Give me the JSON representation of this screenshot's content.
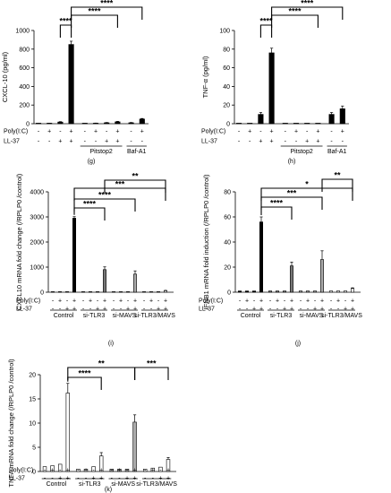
{
  "chart_data": [
    {
      "type": "bar",
      "panel_label": "(g)",
      "ylabel": "CXCL-10 (pg/ml)",
      "ylim": [
        0,
        1000
      ],
      "yticks": [
        "0",
        "200",
        "400",
        "600",
        "800",
        "1000"
      ],
      "row_labels": [
        "Poly(I:C)",
        "LL-37"
      ],
      "signs": {
        "poly": [
          "-",
          "+",
          "-",
          "+",
          "-",
          "+",
          "-",
          "+",
          "-",
          "+"
        ],
        "ll37": [
          "-",
          "-",
          "+",
          "+",
          "-",
          "-",
          "+",
          "+",
          "-",
          "-"
        ]
      },
      "values": [
        2,
        4,
        18,
        850,
        2,
        5,
        10,
        20,
        10,
        50
      ],
      "errors": [
        1,
        1,
        4,
        35,
        1,
        2,
        3,
        5,
        3,
        6
      ],
      "fills": [
        "#000",
        "#000",
        "#000",
        "#000",
        "#000",
        "#000",
        "#000",
        "#000",
        "#000",
        "#000"
      ],
      "groups": [
        {
          "label": "Pitstop2",
          "from": 4,
          "to": 7
        },
        {
          "label": "Baf-A1",
          "from": 8,
          "to": 9
        }
      ],
      "significance": [
        {
          "label": "****",
          "from": 2,
          "to": 3
        },
        {
          "label": "****",
          "from": 3,
          "to": 7
        },
        {
          "label": "****",
          "from": 3,
          "to": 9
        }
      ]
    },
    {
      "type": "bar",
      "panel_label": "(h)",
      "ylabel": "TNF-α (pg/ml)",
      "ylim": [
        0,
        100
      ],
      "yticks": [
        "0",
        "20",
        "40",
        "60",
        "80",
        "100"
      ],
      "row_labels": [
        "Poly(I:C)",
        "LL-37"
      ],
      "signs": {
        "poly": [
          "-",
          "+",
          "-",
          "+",
          "-",
          "+",
          "-",
          "+",
          "-",
          "+"
        ],
        "ll37": [
          "-",
          "-",
          "+",
          "+",
          "-",
          "-",
          "+",
          "+",
          "-",
          "-"
        ]
      },
      "values": [
        0,
        0,
        10,
        76,
        0,
        0,
        0,
        0,
        10,
        16
      ],
      "errors": [
        0,
        0,
        2,
        5,
        0,
        0,
        0,
        0,
        2,
        3
      ],
      "fills": [
        "#000",
        "#000",
        "#000",
        "#000",
        "#000",
        "#000",
        "#000",
        "#000",
        "#000",
        "#000"
      ],
      "groups": [
        {
          "label": "Pitstop2",
          "from": 4,
          "to": 7
        },
        {
          "label": "Baf-A1",
          "from": 8,
          "to": 9
        }
      ],
      "significance": [
        {
          "label": "****",
          "from": 2,
          "to": 3
        },
        {
          "label": "****",
          "from": 3,
          "to": 7
        },
        {
          "label": "****",
          "from": 3,
          "to": 9
        }
      ]
    },
    {
      "type": "bar",
      "panel_label": "(i)",
      "ylabel": "CXCL10 mRNA fold change (/RPLP0 /control)",
      "ylim": [
        0,
        4000
      ],
      "yticks": [
        "0",
        "1000",
        "2000",
        "3000",
        "4000"
      ],
      "row_labels": [
        "Poly(I:C)",
        "LL-37"
      ],
      "signs": {
        "poly": [
          "-",
          "+",
          "-",
          "+",
          "-",
          "+",
          "-",
          "+",
          "-",
          "+",
          "-",
          "+",
          "-",
          "+",
          "-",
          "+"
        ],
        "ll37": [
          "-",
          "-",
          "+",
          "+",
          "-",
          "-",
          "+",
          "+",
          "-",
          "-",
          "+",
          "+",
          "-",
          "-",
          "+",
          "+"
        ]
      },
      "values": [
        0,
        5,
        10,
        2950,
        5,
        5,
        10,
        900,
        5,
        5,
        10,
        720,
        5,
        5,
        10,
        60
      ],
      "errors": [
        0,
        0,
        0,
        60,
        0,
        0,
        0,
        110,
        0,
        0,
        0,
        130,
        0,
        0,
        0,
        15
      ],
      "fills": [
        "#000",
        "#000",
        "#000",
        "#000",
        "#777",
        "#777",
        "#777",
        "#777",
        "#aaa",
        "#aaa",
        "#aaa",
        "#aaa",
        "#fff",
        "#fff",
        "#fff",
        "#fff"
      ],
      "groups": [
        {
          "label": "Control",
          "from": 0,
          "to": 3
        },
        {
          "label": "si-TLR3",
          "from": 4,
          "to": 7
        },
        {
          "label": "si-MAVS",
          "from": 8,
          "to": 11
        },
        {
          "label": "si-TLR3/MAVS",
          "from": 12,
          "to": 15
        }
      ],
      "significance": [
        {
          "label": "****",
          "from": 3,
          "to": 7
        },
        {
          "label": "****",
          "from": 3,
          "to": 11
        },
        {
          "label": "***",
          "from": 3,
          "to": 15
        },
        {
          "label": "**",
          "from": 7,
          "to": 15
        }
      ]
    },
    {
      "type": "bar",
      "panel_label": "(j)",
      "ylabel": "IFNB1 mRNA fold induction (/RPLP0 /control)",
      "ylim": [
        0,
        80
      ],
      "yticks": [
        "0",
        "20",
        "40",
        "60",
        "80"
      ],
      "row_labels": [
        "Poly(I:C)",
        "LL-37"
      ],
      "signs": {
        "poly": [
          "-",
          "+",
          "-",
          "+",
          "-",
          "+",
          "-",
          "+",
          "-",
          "+",
          "-",
          "+",
          "-",
          "+",
          "-",
          "+"
        ],
        "ll37": [
          "-",
          "-",
          "+",
          "+",
          "-",
          "-",
          "+",
          "+",
          "-",
          "-",
          "+",
          "+",
          "-",
          "-",
          "+",
          "+"
        ]
      },
      "values": [
        1,
        1,
        1,
        56,
        1,
        1,
        1,
        21,
        1,
        1,
        1,
        26,
        1,
        1,
        1,
        3
      ],
      "errors": [
        0,
        0,
        0,
        4,
        0,
        0,
        0,
        3,
        0,
        0,
        0,
        7,
        0,
        0,
        0,
        0.5
      ],
      "fills": [
        "#000",
        "#000",
        "#000",
        "#000",
        "#777",
        "#777",
        "#777",
        "#777",
        "#aaa",
        "#aaa",
        "#aaa",
        "#aaa",
        "#fff",
        "#fff",
        "#fff",
        "#fff"
      ],
      "groups": [
        {
          "label": "Control",
          "from": 0,
          "to": 3
        },
        {
          "label": "si-TLR3",
          "from": 4,
          "to": 7
        },
        {
          "label": "si-MAVS",
          "from": 8,
          "to": 11
        },
        {
          "label": "si-TLR3/MAVS",
          "from": 12,
          "to": 15
        }
      ],
      "significance": [
        {
          "label": "****",
          "from": 3,
          "to": 7
        },
        {
          "label": "***",
          "from": 3,
          "to": 11
        },
        {
          "label": "*",
          "from": 3,
          "to": 15
        },
        {
          "label": "**",
          "from": 11,
          "to": 15
        }
      ]
    },
    {
      "type": "bar",
      "panel_label": "(k)",
      "ylabel": "TNFA mRNA fold change (/RPLP0 /control)",
      "ylim": [
        0,
        20
      ],
      "yticks": [
        "0",
        "5",
        "10",
        "15",
        "20"
      ],
      "row_labels": [
        "Poly(I:C)",
        "LL-37"
      ],
      "signs": {
        "poly": [
          "-",
          "+",
          "-",
          "+",
          "-",
          "+",
          "-",
          "+",
          "-",
          "+",
          "-",
          "+",
          "-",
          "+",
          "-",
          "+"
        ],
        "ll37": [
          "-",
          "-",
          "+",
          "+",
          "-",
          "-",
          "+",
          "+",
          "-",
          "-",
          "+",
          "+",
          "-",
          "-",
          "+",
          "+"
        ]
      },
      "values": [
        1,
        1.2,
        1.5,
        16.2,
        0.5,
        0.5,
        1,
        3.2,
        0.5,
        0.5,
        0.5,
        10.2,
        0.5,
        0.7,
        0.9,
        2.5
      ],
      "errors": [
        0,
        0,
        0,
        2,
        0,
        0,
        0,
        0.7,
        0,
        0,
        0,
        1.5,
        0,
        0,
        0,
        0.4
      ],
      "fills": [
        "#fff",
        "#fff",
        "#fff",
        "#fff",
        "#fff",
        "#fff",
        "#fff",
        "#fff",
        "#aaa",
        "#aaa",
        "#aaa",
        "#aaa",
        "#fff",
        "#fff",
        "#fff",
        "#fff"
      ],
      "groups": [
        {
          "label": "Control",
          "from": 0,
          "to": 3
        },
        {
          "label": "si-TLR3",
          "from": 4,
          "to": 7
        },
        {
          "label": "si-MAVS",
          "from": 8,
          "to": 11
        },
        {
          "label": "si-TLR3/MAVS",
          "from": 12,
          "to": 15
        }
      ],
      "significance": [
        {
          "label": "****",
          "from": 3,
          "to": 7
        },
        {
          "label": "**",
          "from": 3,
          "to": 11
        },
        {
          "label": "***",
          "from": 11,
          "to": 15
        }
      ]
    }
  ]
}
